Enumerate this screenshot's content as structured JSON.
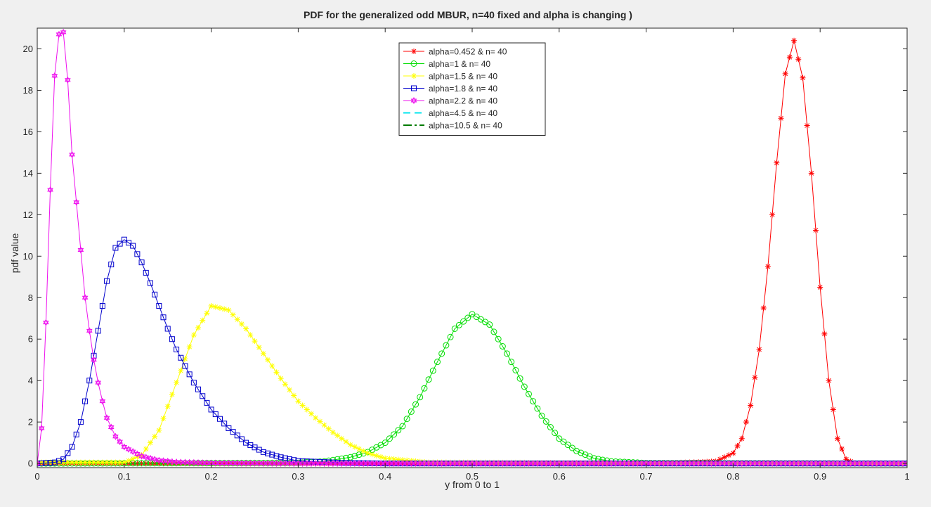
{
  "chart_data": {
    "type": "line",
    "title": "PDF for the generalized odd MBUR, n=40 fixed and alpha is changing )",
    "xlabel": "y from 0 to 1",
    "ylabel": "pdf value",
    "xlim": [
      0,
      1
    ],
    "ylim": [
      -0.2,
      21
    ],
    "x_ticks": [
      0,
      0.1,
      0.2,
      0.3,
      0.4,
      0.5,
      0.6,
      0.7,
      0.8,
      0.9,
      1
    ],
    "y_ticks": [
      0,
      2,
      4,
      6,
      8,
      10,
      12,
      14,
      16,
      18,
      20
    ],
    "x_tick_labels": [
      "0",
      "0.1",
      "0.2",
      "0.3",
      "0.4",
      "0.5",
      "0.6",
      "0.7",
      "0.8",
      "0.9",
      "1"
    ],
    "y_tick_labels": [
      "0",
      "2",
      "4",
      "6",
      "8",
      "10",
      "12",
      "14",
      "16",
      "18",
      "20"
    ],
    "grid": false,
    "legend_position": "top-center",
    "series": [
      {
        "name": "alpha=0.452 & n= 40",
        "color": "#ff0000",
        "marker": "star",
        "line": "solid",
        "x": [
          0.0,
          0.1,
          0.2,
          0.3,
          0.4,
          0.5,
          0.6,
          0.7,
          0.75,
          0.78,
          0.8,
          0.81,
          0.82,
          0.83,
          0.84,
          0.85,
          0.86,
          0.87,
          0.88,
          0.89,
          0.9,
          0.91,
          0.92,
          0.93,
          0.94,
          1.0
        ],
        "y": [
          0,
          0,
          0,
          0,
          0,
          0,
          0,
          0,
          0.05,
          0.1,
          0.5,
          1.2,
          2.8,
          5.5,
          9.5,
          14.5,
          18.8,
          20.4,
          18.6,
          14.0,
          8.5,
          4.0,
          1.2,
          0.2,
          0,
          0
        ]
      },
      {
        "name": "alpha=1 & n= 40",
        "color": "#00dd00",
        "marker": "circle",
        "line": "solid",
        "x": [
          0.0,
          0.3,
          0.33,
          0.36,
          0.38,
          0.4,
          0.42,
          0.44,
          0.46,
          0.48,
          0.5,
          0.52,
          0.54,
          0.56,
          0.58,
          0.6,
          0.62,
          0.64,
          0.66,
          0.7,
          1.0
        ],
        "y": [
          0,
          0.03,
          0.1,
          0.3,
          0.55,
          1.0,
          1.8,
          3.2,
          4.9,
          6.5,
          7.2,
          6.7,
          5.3,
          3.7,
          2.3,
          1.2,
          0.6,
          0.25,
          0.1,
          0.02,
          0
        ]
      },
      {
        "name": "alpha=1.5 & n= 40",
        "color": "#ffff00",
        "marker": "star",
        "line": "solid",
        "x": [
          0.0,
          0.1,
          0.12,
          0.14,
          0.16,
          0.18,
          0.2,
          0.22,
          0.24,
          0.26,
          0.28,
          0.3,
          0.32,
          0.34,
          0.36,
          0.38,
          0.4,
          0.45,
          1.0
        ],
        "y": [
          0.05,
          0.05,
          0.4,
          1.6,
          3.9,
          6.2,
          7.6,
          7.4,
          6.5,
          5.3,
          4.1,
          3.0,
          2.2,
          1.5,
          0.9,
          0.5,
          0.25,
          0.05,
          0
        ]
      },
      {
        "name": "alpha=1.8 & n= 40",
        "color": "#0000cc",
        "marker": "square",
        "line": "solid",
        "x": [
          0.0,
          0.02,
          0.03,
          0.04,
          0.05,
          0.06,
          0.07,
          0.08,
          0.09,
          0.1,
          0.11,
          0.12,
          0.13,
          0.14,
          0.15,
          0.16,
          0.18,
          0.2,
          0.22,
          0.24,
          0.26,
          0.28,
          0.3,
          0.35,
          0.4,
          1.0
        ],
        "y": [
          0,
          0.05,
          0.2,
          0.8,
          2.0,
          4.0,
          6.4,
          8.8,
          10.4,
          10.8,
          10.5,
          9.7,
          8.7,
          7.6,
          6.5,
          5.5,
          3.9,
          2.6,
          1.7,
          1.0,
          0.55,
          0.3,
          0.12,
          0.03,
          0,
          0
        ]
      },
      {
        "name": "alpha=2.2 & n= 40",
        "color": "#ee11ee",
        "marker": "hexagram",
        "line": "solid",
        "x": [
          0.0,
          0.005,
          0.01,
          0.015,
          0.02,
          0.025,
          0.03,
          0.035,
          0.04,
          0.045,
          0.05,
          0.055,
          0.06,
          0.065,
          0.07,
          0.075,
          0.08,
          0.09,
          0.1,
          0.12,
          0.14,
          0.16,
          0.2,
          0.3,
          1.0
        ],
        "y": [
          0,
          1.7,
          6.8,
          13.2,
          18.7,
          20.7,
          20.8,
          18.5,
          14.9,
          12.6,
          10.3,
          8.0,
          6.4,
          5.0,
          3.9,
          3.0,
          2.2,
          1.3,
          0.8,
          0.35,
          0.15,
          0.07,
          0.02,
          0,
          0
        ]
      },
      {
        "name": "alpha=4.5 & n= 40",
        "color": "#00e5ee",
        "marker": "none",
        "line": "dashed",
        "x": [
          0.0,
          1.0
        ],
        "y": [
          0,
          0
        ]
      },
      {
        "name": "alpha=10.5 & n= 40",
        "color": "#007a00",
        "marker": "none",
        "line": "dashdot",
        "x": [
          0.0,
          1.0
        ],
        "y": [
          0,
          0
        ]
      }
    ]
  }
}
